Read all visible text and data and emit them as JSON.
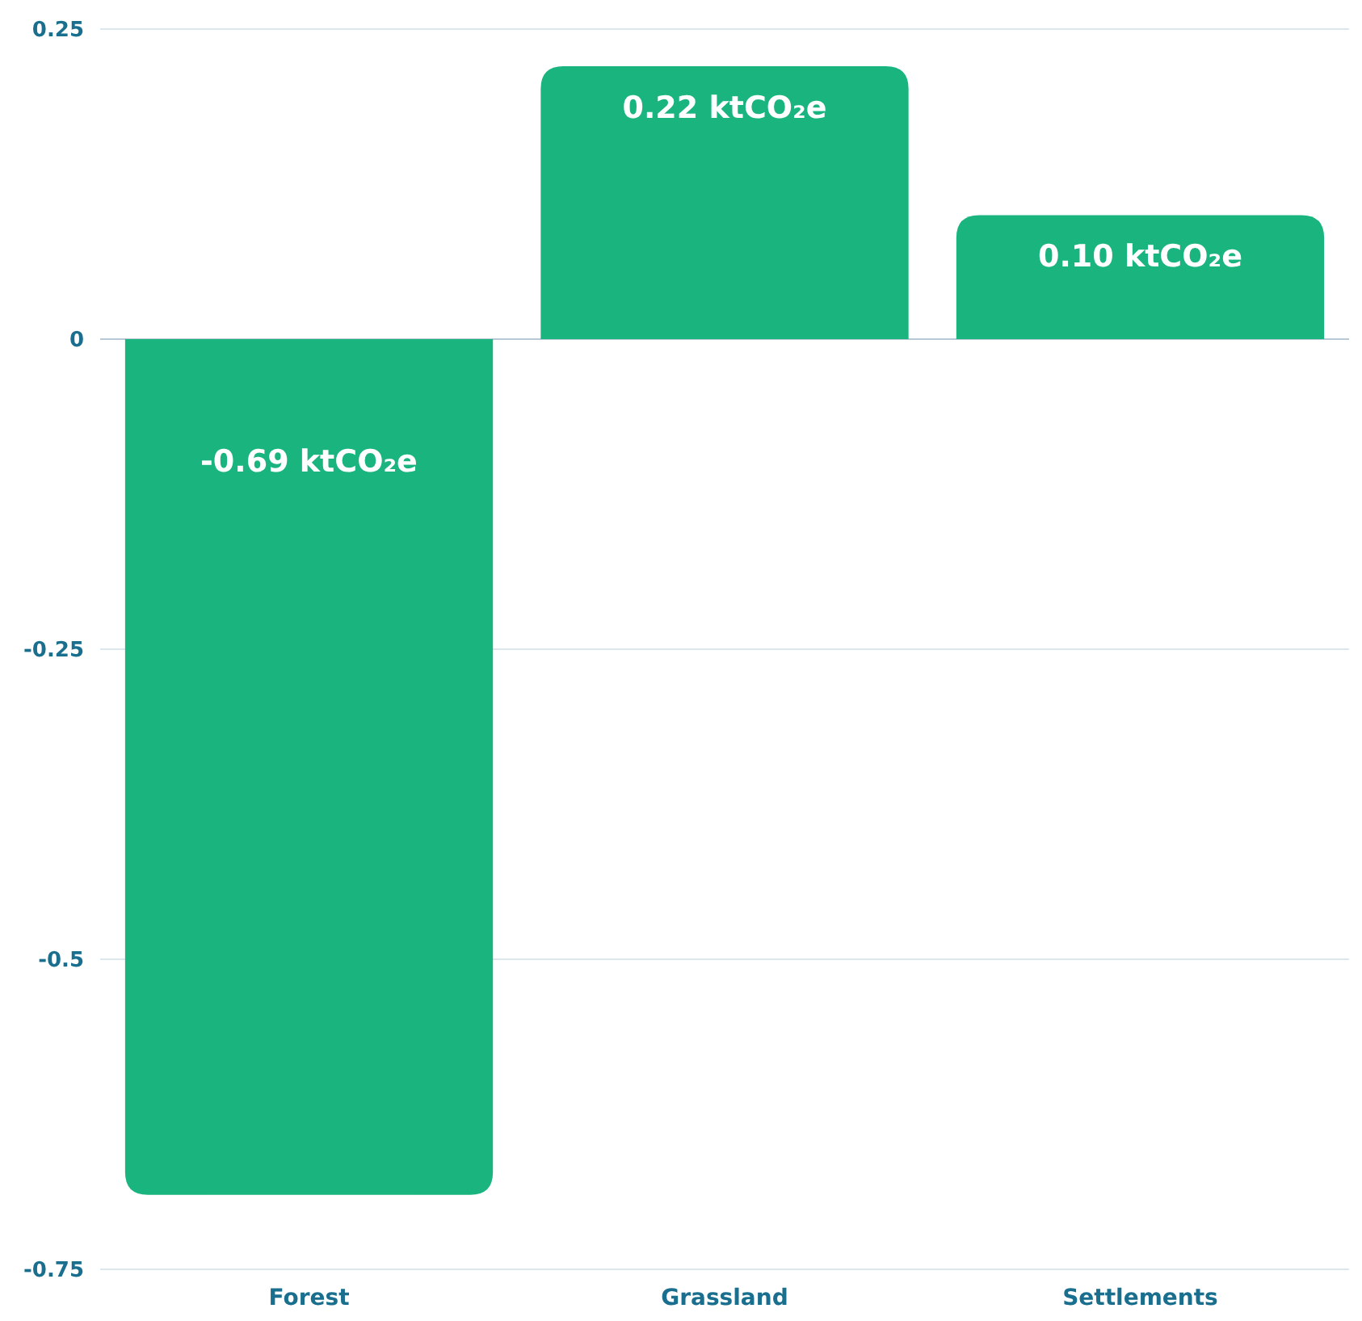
{
  "chart_data": {
    "type": "bar",
    "categories": [
      "Forest",
      "Grassland",
      "Settlements"
    ],
    "values": [
      -0.69,
      0.22,
      0.1
    ],
    "value_labels": [
      "-0.69 ktCO₂e",
      "0.22 ktCO₂e",
      "0.10 ktCO₂e"
    ],
    "color": "#1ab57f",
    "ylim": [
      -0.75,
      0.25
    ],
    "yticks": [
      0.25,
      0,
      -0.25,
      -0.5,
      -0.75
    ],
    "grid": "y"
  }
}
